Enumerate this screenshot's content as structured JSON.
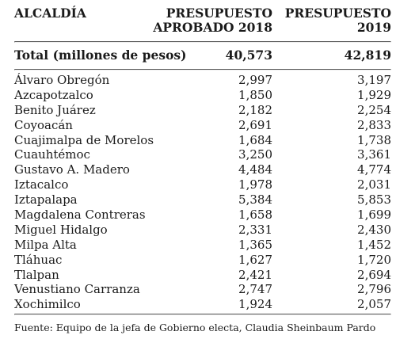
{
  "header": {
    "col_name": "ALCALDÍA",
    "col_2018_line1": "PRESUPUESTO",
    "col_2018_line2": "APROBADO 2018",
    "col_2019_line1": "PRESUPUESTO",
    "col_2019_line2": "2019"
  },
  "total": {
    "label": "Total (millones de pesos)",
    "v2018": "40,573",
    "v2019": "42,819"
  },
  "rows": [
    {
      "name": "Álvaro Obregón",
      "v2018": "2,997",
      "v2019": "3,197"
    },
    {
      "name": "Azcapotzalco",
      "v2018": "1,850",
      "v2019": "1,929"
    },
    {
      "name": "Benito Juárez",
      "v2018": "2,182",
      "v2019": "2,254"
    },
    {
      "name": "Coyoacán",
      "v2018": "2,691",
      "v2019": "2,833"
    },
    {
      "name": "Cuajimalpa de Morelos",
      "v2018": "1,684",
      "v2019": "1,738"
    },
    {
      "name": "Cuauhtémoc",
      "v2018": "3,250",
      "v2019": "3,361"
    },
    {
      "name": "Gustavo A. Madero",
      "v2018": "4,484",
      "v2019": "4,774"
    },
    {
      "name": "Iztacalco",
      "v2018": "1,978",
      "v2019": "2,031"
    },
    {
      "name": "Iztapalapa",
      "v2018": "5,384",
      "v2019": "5,853"
    },
    {
      "name": "Magdalena Contreras",
      "v2018": "1,658",
      "v2019": "1,699"
    },
    {
      "name": "Miguel Hidalgo",
      "v2018": "2,331",
      "v2019": "2,430"
    },
    {
      "name": "Milpa Alta",
      "v2018": "1,365",
      "v2019": "1,452"
    },
    {
      "name": "Tláhuac",
      "v2018": "1,627",
      "v2019": "1,720"
    },
    {
      "name": "Tlalpan",
      "v2018": "2,421",
      "v2019": "2,694"
    },
    {
      "name": "Venustiano Carranza",
      "v2018": "2,747",
      "v2019": "2,796"
    },
    {
      "name": "Xochimilco",
      "v2018": "1,924",
      "v2019": "2,057"
    }
  ],
  "source": "Fuente: Equipo de la jefa de Gobierno electa, Claudia Sheinbaum Pardo"
}
